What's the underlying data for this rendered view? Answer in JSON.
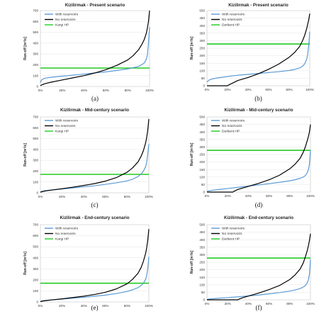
{
  "chart_data": [
    {
      "type": "line",
      "letter": "(a)",
      "title": "Kizilirmak - Present scenario",
      "ylabel": "Run-off [m³/s]",
      "ylim": [
        0,
        700
      ],
      "yticks": [
        0,
        100,
        200,
        300,
        400,
        500,
        600,
        700
      ],
      "xlim": [
        0,
        100
      ],
      "xticks": [
        "0%",
        "20%",
        "40%",
        "60%",
        "80%",
        "100%"
      ],
      "legend_position": "top-left",
      "series": [
        {
          "name": "With reservoirs",
          "color": "#5b9bd5",
          "x": [
            0,
            1,
            3,
            5,
            10,
            20,
            30,
            40,
            50,
            60,
            70,
            80,
            90,
            95,
            97,
            98,
            99,
            99.5,
            100
          ],
          "y": [
            35,
            60,
            72,
            78,
            85,
            95,
            105,
            115,
            125,
            135,
            148,
            162,
            185,
            215,
            250,
            290,
            400,
            480,
            550
          ]
        },
        {
          "name": "No reservoirs",
          "color": "#000000",
          "x": [
            0,
            2,
            5,
            10,
            20,
            30,
            40,
            50,
            60,
            70,
            80,
            85,
            90,
            93,
            95,
            97,
            98,
            99,
            100
          ],
          "y": [
            8,
            18,
            28,
            40,
            60,
            80,
            100,
            125,
            155,
            195,
            245,
            285,
            340,
            390,
            430,
            490,
            540,
            600,
            700
          ]
        },
        {
          "name": "Kargi HP",
          "color": "#22cc22",
          "x": [
            0,
            100
          ],
          "y": [
            170,
            170
          ]
        }
      ]
    },
    {
      "type": "line",
      "letter": "(b)",
      "title": "Kizilirmak - Present scenario",
      "ylabel": "Run-off [m³/s]",
      "ylim": [
        0,
        500
      ],
      "yticks": [
        0,
        50,
        100,
        150,
        200,
        250,
        300,
        350,
        400,
        450,
        500
      ],
      "xlim": [
        0,
        100
      ],
      "xticks": [
        "0%",
        "20%",
        "40%",
        "60%",
        "80%",
        "100%"
      ],
      "legend_position": "top-left",
      "series": [
        {
          "name": "With reservoirs",
          "color": "#5b9bd5",
          "x": [
            0,
            2,
            5,
            10,
            20,
            30,
            40,
            50,
            60,
            70,
            80,
            85,
            90,
            93,
            95,
            97,
            98,
            99,
            100
          ],
          "y": [
            25,
            38,
            45,
            52,
            62,
            70,
            76,
            82,
            88,
            94,
            102,
            108,
            118,
            130,
            145,
            175,
            210,
            270,
            360
          ]
        },
        {
          "name": "No reservoirs",
          "color": "#000000",
          "x": [
            0,
            20,
            21,
            25,
            30,
            40,
            50,
            60,
            70,
            80,
            85,
            90,
            93,
            95,
            97,
            98,
            99,
            100
          ],
          "y": [
            0,
            0,
            5,
            18,
            35,
            55,
            80,
            110,
            145,
            190,
            220,
            260,
            300,
            335,
            380,
            410,
            440,
            480
          ]
        },
        {
          "name": "Derbent HP",
          "color": "#22cc22",
          "x": [
            0,
            100
          ],
          "y": [
            278,
            278
          ]
        }
      ]
    },
    {
      "type": "line",
      "letter": "(c)",
      "title": "Kizilirmak - Mid-century scenario",
      "ylabel": "Run-off [m³/s]",
      "ylim": [
        0,
        700
      ],
      "yticks": [
        0,
        100,
        200,
        300,
        400,
        500,
        600,
        700
      ],
      "xlim": [
        0,
        100
      ],
      "xticks": [
        "0%",
        "20%",
        "40%",
        "60%",
        "80%",
        "100%"
      ],
      "legend_position": "top-left",
      "series": [
        {
          "name": "With reservoirs",
          "color": "#5b9bd5",
          "x": [
            0,
            2,
            5,
            10,
            20,
            30,
            40,
            50,
            60,
            70,
            80,
            85,
            90,
            93,
            95,
            97,
            98,
            99,
            100
          ],
          "y": [
            8,
            15,
            20,
            25,
            35,
            45,
            55,
            65,
            78,
            92,
            110,
            125,
            150,
            175,
            200,
            240,
            280,
            360,
            450
          ]
        },
        {
          "name": "No reservoirs",
          "color": "#000000",
          "x": [
            0,
            2,
            5,
            10,
            20,
            30,
            40,
            50,
            60,
            70,
            80,
            85,
            90,
            93,
            95,
            97,
            98,
            99,
            100
          ],
          "y": [
            5,
            12,
            18,
            25,
            38,
            52,
            68,
            85,
            108,
            140,
            190,
            230,
            285,
            340,
            390,
            460,
            510,
            580,
            680
          ]
        },
        {
          "name": "Kargi HP",
          "color": "#22cc22",
          "x": [
            0,
            100
          ],
          "y": [
            170,
            170
          ]
        }
      ]
    },
    {
      "type": "line",
      "letter": "(d)",
      "title": "Kizilirmak - Mid-century scenario",
      "ylabel": "Run-off [m³/s]",
      "ylim": [
        0,
        500
      ],
      "yticks": [
        0,
        50,
        100,
        150,
        200,
        250,
        300,
        350,
        400,
        450,
        500
      ],
      "xlim": [
        0,
        100
      ],
      "xticks": [
        "0%",
        "20%",
        "40%",
        "60%",
        "80%",
        "100%"
      ],
      "legend_position": "top-left",
      "series": [
        {
          "name": "With reservoirs",
          "color": "#5b9bd5",
          "x": [
            0,
            2,
            5,
            10,
            20,
            30,
            40,
            50,
            60,
            70,
            80,
            85,
            90,
            93,
            95,
            97,
            98,
            99,
            100
          ],
          "y": [
            5,
            8,
            12,
            16,
            24,
            32,
            40,
            48,
            56,
            65,
            75,
            82,
            92,
            100,
            110,
            130,
            150,
            185,
            280
          ]
        },
        {
          "name": "No reservoirs",
          "color": "#000000",
          "x": [
            0,
            25,
            26,
            30,
            40,
            50,
            60,
            70,
            80,
            85,
            90,
            93,
            95,
            97,
            98,
            99,
            100
          ],
          "y": [
            0,
            0,
            5,
            18,
            38,
            58,
            82,
            112,
            155,
            185,
            225,
            265,
            300,
            345,
            370,
            400,
            450
          ]
        },
        {
          "name": "Derbent HP",
          "color": "#22cc22",
          "x": [
            0,
            100
          ],
          "y": [
            278,
            278
          ]
        }
      ]
    },
    {
      "type": "line",
      "letter": "(e)",
      "title": "Kizilirmak - End-century scenario",
      "ylabel": "Run-off [m³/s]",
      "ylim": [
        0,
        700
      ],
      "yticks": [
        0,
        100,
        200,
        300,
        400,
        500,
        600,
        700
      ],
      "xlim": [
        0,
        100
      ],
      "xticks": [
        "0%",
        "20%",
        "40%",
        "60%",
        "80%",
        "100%"
      ],
      "legend_position": "top-left",
      "series": [
        {
          "name": "With reservoirs",
          "color": "#5b9bd5",
          "x": [
            0,
            2,
            5,
            10,
            20,
            30,
            40,
            50,
            60,
            70,
            80,
            85,
            90,
            93,
            95,
            97,
            98,
            99,
            100
          ],
          "y": [
            5,
            10,
            14,
            18,
            26,
            34,
            42,
            52,
            62,
            76,
            95,
            110,
            130,
            150,
            170,
            205,
            240,
            300,
            410
          ]
        },
        {
          "name": "No reservoirs",
          "color": "#000000",
          "x": [
            0,
            2,
            5,
            10,
            20,
            30,
            40,
            50,
            60,
            70,
            80,
            85,
            90,
            93,
            95,
            97,
            98,
            99,
            100
          ],
          "y": [
            3,
            8,
            12,
            18,
            28,
            40,
            52,
            68,
            88,
            118,
            165,
            205,
            260,
            315,
            370,
            440,
            490,
            560,
            660
          ]
        },
        {
          "name": "Kargi HP",
          "color": "#22cc22",
          "x": [
            0,
            100
          ],
          "y": [
            170,
            170
          ]
        }
      ]
    },
    {
      "type": "line",
      "letter": "(f)",
      "title": "Kizilirmak - End-century scenario",
      "ylabel": "Run-off [m³/s]",
      "ylim": [
        0,
        500
      ],
      "yticks": [
        0,
        50,
        100,
        150,
        200,
        250,
        300,
        350,
        400,
        450,
        500
      ],
      "xlim": [
        0,
        100
      ],
      "xticks": [
        "0%",
        "20%",
        "40%",
        "60%",
        "80%",
        "100%"
      ],
      "legend_position": "top-left",
      "series": [
        {
          "name": "With reservoirs",
          "color": "#5b9bd5",
          "x": [
            0,
            2,
            5,
            10,
            20,
            30,
            40,
            50,
            60,
            70,
            80,
            85,
            90,
            93,
            95,
            97,
            98,
            99,
            100
          ],
          "y": [
            3,
            5,
            7,
            10,
            15,
            20,
            26,
            32,
            40,
            48,
            58,
            65,
            75,
            85,
            95,
            115,
            135,
            170,
            270
          ]
        },
        {
          "name": "No reservoirs",
          "color": "#000000",
          "x": [
            0,
            30,
            31,
            35,
            40,
            50,
            60,
            70,
            80,
            85,
            90,
            93,
            95,
            97,
            98,
            99,
            100
          ],
          "y": [
            0,
            0,
            5,
            15,
            25,
            45,
            68,
            95,
            135,
            165,
            205,
            245,
            285,
            330,
            360,
            395,
            440
          ]
        },
        {
          "name": "Derbent HP",
          "color": "#22cc22",
          "x": [
            0,
            100
          ],
          "y": [
            278,
            278
          ]
        }
      ]
    }
  ]
}
